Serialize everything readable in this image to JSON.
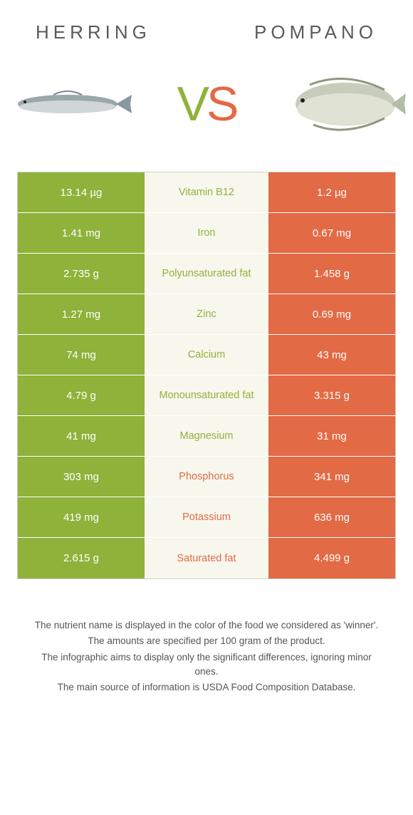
{
  "left_name": "Herring",
  "right_name": "Pompano",
  "vs_v": "V",
  "vs_s": "S",
  "colors": {
    "left": "#8fb23a",
    "right": "#e26a45",
    "mid_bg": "#f7f7ee",
    "left_text_winner": "#8fb23a",
    "right_text_winner": "#e26a45"
  },
  "rows": [
    {
      "label": "Vitamin B12",
      "left": "13.14 µg",
      "right": "1.2 µg",
      "winner": "left"
    },
    {
      "label": "Iron",
      "left": "1.41 mg",
      "right": "0.67 mg",
      "winner": "left"
    },
    {
      "label": "Polyunsaturated fat",
      "left": "2.735 g",
      "right": "1.458 g",
      "winner": "left"
    },
    {
      "label": "Zinc",
      "left": "1.27 mg",
      "right": "0.69 mg",
      "winner": "left"
    },
    {
      "label": "Calcium",
      "left": "74 mg",
      "right": "43 mg",
      "winner": "left"
    },
    {
      "label": "Monounsaturated fat",
      "left": "4.79 g",
      "right": "3.315 g",
      "winner": "left"
    },
    {
      "label": "Magnesium",
      "left": "41 mg",
      "right": "31 mg",
      "winner": "left"
    },
    {
      "label": "Phosphorus",
      "left": "303 mg",
      "right": "341 mg",
      "winner": "right"
    },
    {
      "label": "Potassium",
      "left": "419 mg",
      "right": "636 mg",
      "winner": "right"
    },
    {
      "label": "Saturated fat",
      "left": "2.615 g",
      "right": "4.499 g",
      "winner": "right"
    }
  ],
  "footnotes": [
    "The nutrient name is displayed in the color of the food we considered as 'winner'.",
    "The amounts are specified per 100 gram of the product.",
    "The infographic aims to display only the significant differences, ignoring minor ones.",
    "The main source of information is USDA Food Composition Database."
  ]
}
